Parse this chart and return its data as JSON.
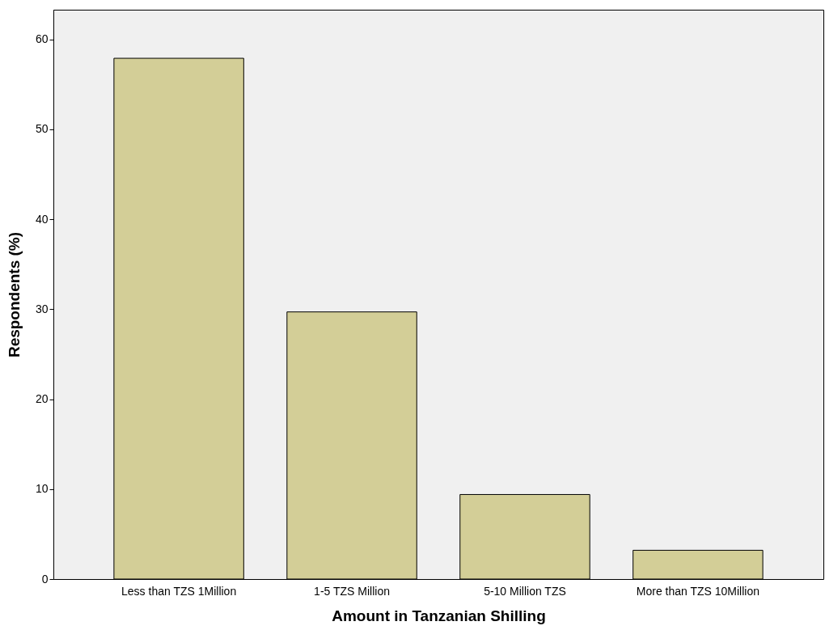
{
  "chart_data": {
    "type": "bar",
    "xlabel": "Amount in Tanzanian Shilling",
    "ylabel": "Respondents (%)",
    "categories": [
      "Less than TZS 1Million",
      "1-5 TZS Million",
      "5-10 Million TZS",
      "More than TZS 10Million"
    ],
    "values": [
      57.9,
      29.7,
      9.4,
      3.2
    ],
    "color": "#d3ce97",
    "ylim": [
      0,
      63.3
    ],
    "yticks": [
      0,
      10,
      20,
      30,
      40,
      50,
      60
    ],
    "grid": false
  }
}
